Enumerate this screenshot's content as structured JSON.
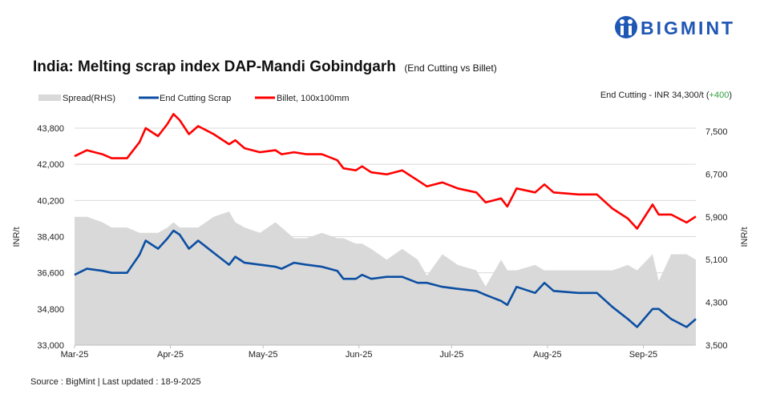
{
  "brand": {
    "name": "BIGMINT",
    "color": "#1f57b5"
  },
  "chart_data": {
    "type": "line",
    "title": "India: Melting scrap index DAP-Mandi Gobindgarh",
    "subtitle": "(End Cutting  vs Billet)",
    "annotation": {
      "text": "End Cutting - INR 34,300/t (",
      "change": "+400",
      "close": ")",
      "change_color": "#2e9e3e"
    },
    "ylabel": "INR/t",
    "ylabel_right": "INR/t",
    "ylim": [
      33000,
      43800
    ],
    "ylim_right": [
      3500,
      7500
    ],
    "yticks": [
      "43,800",
      "42,000",
      "40,200",
      "38,400",
      "36,600",
      "34,800",
      "33,000"
    ],
    "ytick_values": [
      43800,
      42000,
      40200,
      38400,
      36600,
      34800,
      33000
    ],
    "yticks_right": [
      "7,500",
      "6,700",
      "5,900",
      "5,100",
      "4,300",
      "3,500"
    ],
    "ytick_values_right": [
      7500,
      6700,
      5900,
      5100,
      4300,
      3500
    ],
    "xlim": [
      "2025-03-01",
      "2025-09-18"
    ],
    "xticks": [
      {
        "label": "Mar-25",
        "date": "2025-03-01"
      },
      {
        "label": "Apr-25",
        "date": "2025-04-01"
      },
      {
        "label": "May-25",
        "date": "2025-05-01"
      },
      {
        "label": "Jun-25",
        "date": "2025-06-01"
      },
      {
        "label": "Jul-25",
        "date": "2025-07-01"
      },
      {
        "label": "Aug-25",
        "date": "2025-08-01"
      },
      {
        "label": "Sep-25",
        "date": "2025-09-01"
      }
    ],
    "grid": true,
    "legend_placement": "top-left",
    "x": [
      "2025-03-01",
      "2025-03-05",
      "2025-03-10",
      "2025-03-13",
      "2025-03-18",
      "2025-03-22",
      "2025-03-24",
      "2025-03-28",
      "2025-03-31",
      "2025-04-02",
      "2025-04-04",
      "2025-04-07",
      "2025-04-10",
      "2025-04-15",
      "2025-04-20",
      "2025-04-22",
      "2025-04-25",
      "2025-04-30",
      "2025-05-05",
      "2025-05-07",
      "2025-05-11",
      "2025-05-15",
      "2025-05-20",
      "2025-05-25",
      "2025-05-27",
      "2025-05-31",
      "2025-06-02",
      "2025-06-05",
      "2025-06-10",
      "2025-06-15",
      "2025-06-20",
      "2025-06-23",
      "2025-06-28",
      "2025-07-03",
      "2025-07-09",
      "2025-07-12",
      "2025-07-17",
      "2025-07-19",
      "2025-07-22",
      "2025-07-28",
      "2025-07-31",
      "2025-08-03",
      "2025-08-11",
      "2025-08-17",
      "2025-08-22",
      "2025-08-27",
      "2025-08-30",
      "2025-09-04",
      "2025-09-06",
      "2025-09-10",
      "2025-09-15",
      "2025-09-18"
    ],
    "series": [
      {
        "name": "Spread(RHS)",
        "axis": "right",
        "kind": "area",
        "color": "#d9d9d9",
        "values": [
          5900,
          5900,
          5800,
          5700,
          5700,
          5600,
          5600,
          5600,
          5700,
          5800,
          5700,
          5700,
          5700,
          5900,
          6000,
          5800,
          5700,
          5600,
          5800,
          5700,
          5500,
          5500,
          5600,
          5500,
          5500,
          5400,
          5400,
          5300,
          5100,
          5300,
          5100,
          4800,
          5200,
          5000,
          4900,
          4600,
          5100,
          4900,
          4900,
          5000,
          4900,
          4900,
          4900,
          4900,
          4900,
          5000,
          4900,
          5200,
          4700,
          5200,
          5200,
          5100
        ]
      },
      {
        "name": "End Cutting Scrap",
        "axis": "left",
        "kind": "line",
        "color": "#0b4ea2",
        "values": [
          36500,
          36800,
          36700,
          36600,
          36600,
          37500,
          38200,
          37800,
          38300,
          38700,
          38500,
          37800,
          38200,
          37600,
          37000,
          37400,
          37100,
          37000,
          36900,
          36800,
          37100,
          37000,
          36900,
          36700,
          36300,
          36300,
          36500,
          36300,
          36400,
          36400,
          36100,
          36100,
          35900,
          35800,
          35700,
          35500,
          35200,
          35000,
          35900,
          35600,
          36100,
          35700,
          35600,
          35600,
          34900,
          34300,
          33900,
          34800,
          34800,
          34300,
          33900,
          34300
        ]
      },
      {
        "name": "Billet, 100x100mm",
        "axis": "left",
        "kind": "line",
        "color": "#ff0000",
        "values": [
          42400,
          42700,
          42500,
          42300,
          42300,
          43100,
          43800,
          43400,
          44000,
          44500,
          44200,
          43500,
          43900,
          43500,
          43000,
          43200,
          42800,
          42600,
          42700,
          42500,
          42600,
          42500,
          42500,
          42200,
          41800,
          41700,
          41900,
          41600,
          41500,
          41700,
          41200,
          40900,
          41100,
          40800,
          40600,
          40100,
          40300,
          39900,
          40800,
          40600,
          41000,
          40600,
          40500,
          40500,
          39800,
          39300,
          38800,
          40000,
          39500,
          39500,
          39100,
          39400
        ]
      }
    ]
  },
  "footer": {
    "source": "Source : BigMint | Last updated : 18-9-2025"
  }
}
